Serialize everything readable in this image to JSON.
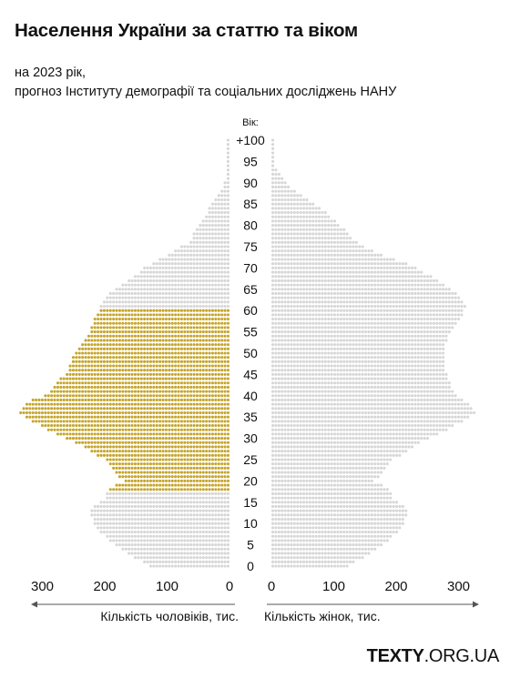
{
  "title": "Населення України за статтю та віком",
  "subtitle_lines": [
    "на 2023 рік,",
    "прогноз Інституту демографії та соціальних досліджень НАНУ"
  ],
  "brand": {
    "bold": "TEXTY",
    "rest": ".ORG.UA"
  },
  "colors": {
    "highlight": "#c6a52d",
    "dots": "#d6d6d6",
    "text": "#111111",
    "axis": "#555555"
  },
  "chart_data": {
    "type": "population_pyramid",
    "age_axis_title": "Вік:",
    "age_tick_labels": [
      "0",
      "5",
      "10",
      "15",
      "20",
      "25",
      "30",
      "35",
      "40",
      "45",
      "50",
      "55",
      "60",
      "65",
      "70",
      "75",
      "80",
      "85",
      "90",
      "95",
      "+100"
    ],
    "age_ticks": [
      0,
      5,
      10,
      15,
      20,
      25,
      30,
      35,
      40,
      45,
      50,
      55,
      60,
      65,
      70,
      75,
      80,
      85,
      90,
      95,
      100
    ],
    "x_tick_labels": [
      "0",
      "100",
      "200",
      "300"
    ],
    "x_ticks": [
      0,
      100,
      200,
      300
    ],
    "xlim": [
      0,
      350
    ],
    "unit": "тис.",
    "dot_value": 5,
    "highlight_ages": [
      18,
      60
    ],
    "ages": [
      0,
      1,
      2,
      3,
      4,
      5,
      6,
      7,
      8,
      9,
      10,
      11,
      12,
      13,
      14,
      15,
      16,
      17,
      18,
      19,
      20,
      21,
      22,
      23,
      24,
      25,
      26,
      27,
      28,
      29,
      30,
      31,
      32,
      33,
      34,
      35,
      36,
      37,
      38,
      39,
      40,
      41,
      42,
      43,
      44,
      45,
      46,
      47,
      48,
      49,
      50,
      51,
      52,
      53,
      54,
      55,
      56,
      57,
      58,
      59,
      60,
      61,
      62,
      63,
      64,
      65,
      66,
      67,
      68,
      69,
      70,
      71,
      72,
      73,
      74,
      75,
      76,
      77,
      78,
      79,
      80,
      81,
      82,
      83,
      84,
      85,
      86,
      87,
      88,
      89,
      90,
      91,
      92,
      93,
      94,
      95,
      96,
      97,
      98,
      99,
      100
    ],
    "series": [
      {
        "name": "Кількість чоловіків, тис.",
        "side": "left",
        "values": [
          130,
          140,
          155,
          165,
          175,
          185,
          195,
          200,
          210,
          215,
          220,
          220,
          225,
          225,
          220,
          210,
          200,
          200,
          195,
          185,
          170,
          180,
          185,
          190,
          195,
          200,
          215,
          225,
          235,
          250,
          265,
          280,
          295,
          305,
          320,
          330,
          340,
          335,
          330,
          320,
          300,
          290,
          285,
          280,
          275,
          265,
          260,
          260,
          255,
          255,
          250,
          245,
          240,
          235,
          230,
          228,
          225,
          222,
          220,
          215,
          210,
          210,
          205,
          200,
          195,
          185,
          175,
          165,
          155,
          145,
          140,
          125,
          115,
          100,
          90,
          80,
          65,
          60,
          60,
          55,
          50,
          45,
          40,
          38,
          35,
          30,
          25,
          22,
          18,
          14,
          10,
          8,
          6,
          5,
          4,
          3,
          2,
          2,
          1,
          1,
          1
        ]
      },
      {
        "name": "Кількість жінок, тис.",
        "side": "right",
        "values": [
          125,
          135,
          150,
          160,
          170,
          180,
          190,
          195,
          205,
          210,
          215,
          215,
          220,
          220,
          215,
          205,
          195,
          195,
          190,
          180,
          165,
          175,
          180,
          185,
          190,
          195,
          210,
          220,
          230,
          240,
          255,
          270,
          285,
          295,
          310,
          320,
          330,
          325,
          320,
          310,
          300,
          295,
          290,
          290,
          285,
          285,
          280,
          280,
          280,
          280,
          280,
          280,
          280,
          285,
          285,
          290,
          295,
          300,
          305,
          310,
          310,
          315,
          310,
          305,
          300,
          290,
          280,
          270,
          260,
          245,
          235,
          220,
          200,
          180,
          165,
          150,
          140,
          130,
          125,
          120,
          110,
          105,
          95,
          90,
          80,
          70,
          60,
          50,
          40,
          32,
          25,
          20,
          15,
          12,
          9,
          6,
          4,
          3,
          2,
          1,
          1
        ]
      }
    ]
  }
}
